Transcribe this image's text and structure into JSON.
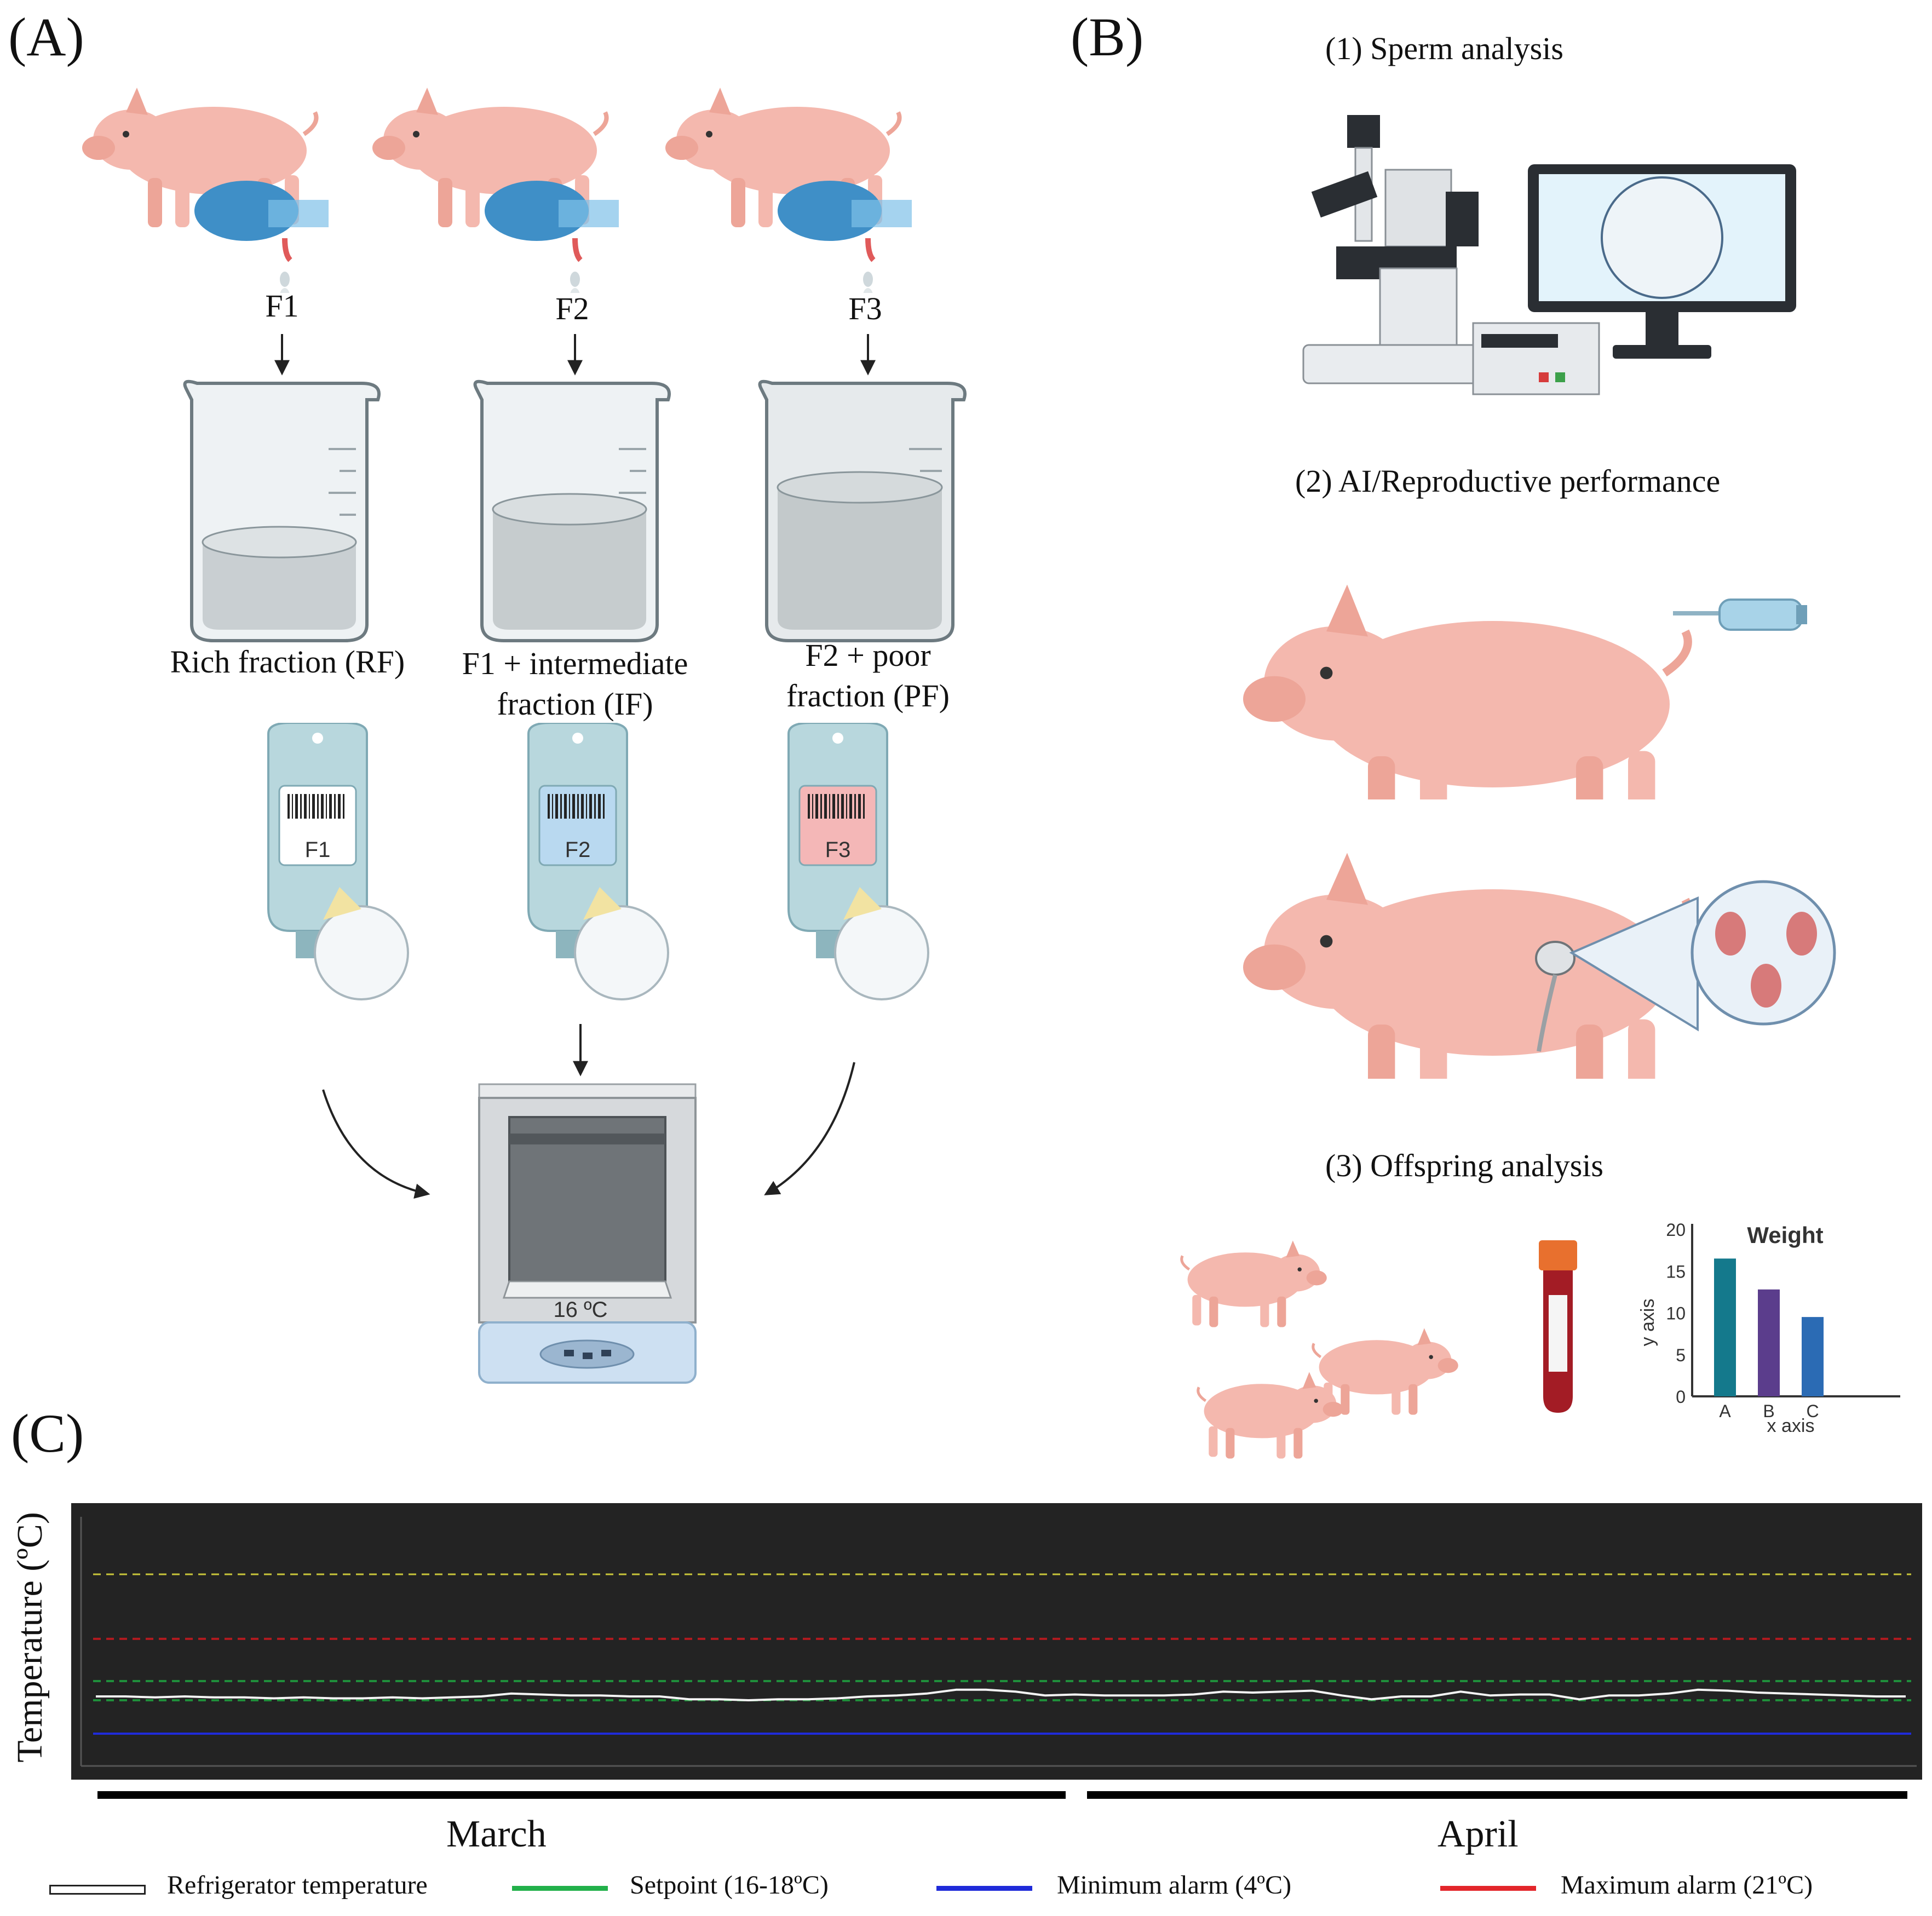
{
  "panels": {
    "a": "(A)",
    "b": "(B)",
    "c": "(C)"
  },
  "collection": {
    "fractions": [
      {
        "id": "F1",
        "label": "Rich fraction (RF)"
      },
      {
        "id": "F2",
        "label": "F1 + intermediate fraction (IF)"
      },
      {
        "id": "F3",
        "label": "F2 + poor fraction (PF)"
      }
    ],
    "bags": [
      "F1",
      "F2",
      "F3"
    ],
    "storage_temp": "16 ºC"
  },
  "analyses": {
    "sperm": "(1) Sperm analysis",
    "ai": "(2) AI/Reproductive performance",
    "offspring": "(3) Offspring analysis"
  },
  "mini_chart": {
    "type": "bar",
    "title": "Weight",
    "xlabel": "x axis",
    "ylabel": "y axis",
    "categories": [
      "A",
      "B",
      "C"
    ],
    "values": [
      16.5,
      12.8,
      9.5
    ],
    "yticks": [
      "0",
      "5",
      "10",
      "15",
      "20"
    ],
    "ylim": [
      0,
      20
    ],
    "colors": [
      "#14798c",
      "#5b3d8c",
      "#2b6bb4"
    ]
  },
  "chart_data": {
    "type": "line",
    "ylabel": "Temperature (ºC)",
    "months": [
      "March",
      "April"
    ],
    "series": [
      {
        "name": "Refrigerator temperature",
        "color": "#ffffff",
        "values": [
          16.4,
          16.4,
          16.3,
          16.4,
          16.3,
          16.3,
          16.2,
          16.3,
          16.2,
          16.2,
          16.3,
          16.2,
          16.3,
          16.4,
          16.7,
          16.6,
          16.5,
          16.5,
          16.4,
          16.4,
          16.1,
          16.1,
          16.0,
          16.1,
          16.1,
          16.2,
          16.4,
          16.5,
          16.7,
          17.1,
          17.1,
          16.9,
          16.5,
          16.6,
          16.5,
          16.5,
          16.5,
          16.6,
          16.9,
          16.8,
          16.9,
          17.0,
          16.5,
          16.1,
          16.4,
          16.4,
          16.9,
          16.5,
          16.6,
          16.6,
          16.1,
          16.5,
          16.5,
          16.7,
          17.1,
          17.0,
          16.8,
          16.7,
          16.6,
          16.5,
          16.4,
          16.4
        ]
      },
      {
        "name": "Setpoint (16-18ºC)",
        "color": "#22b04a",
        "values": [
          16,
          18
        ]
      },
      {
        "name": "Minimum alarm (4ºC)",
        "color": "#1f2bd9",
        "values": [
          4
        ]
      },
      {
        "name": "Maximum alarm (21ºC)",
        "color": "#e3262b",
        "values": [
          21
        ]
      }
    ],
    "legend": [
      {
        "label": "Refrigerator temperature",
        "color": "#ffffff"
      },
      {
        "label": "Setpoint (16-18ºC)",
        "color": "#22b04a"
      },
      {
        "label": "Minimum alarm (4ºC)",
        "color": "#1f2bd9"
      },
      {
        "label": "Maximum alarm (21ºC)",
        "color": "#e3262b"
      }
    ]
  }
}
